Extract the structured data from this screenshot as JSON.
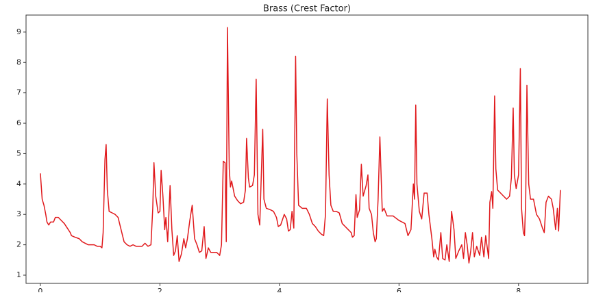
{
  "chart_data": {
    "type": "line",
    "title": "Brass (Crest Factor)",
    "x": [
      0,
      0.03,
      0.06,
      0.09,
      0.11,
      0.14,
      0.17,
      0.22,
      0.25,
      0.3,
      0.35,
      0.4,
      0.45,
      0.5,
      0.52,
      0.58,
      0.65,
      0.7,
      0.75,
      0.8,
      0.85,
      0.9,
      0.95,
      1,
      1.03,
      1.05,
      1.08,
      1.1,
      1.12,
      1.15,
      1.2,
      1.25,
      1.3,
      1.35,
      1.4,
      1.45,
      1.5,
      1.55,
      1.6,
      1.7,
      1.75,
      1.8,
      1.85,
      1.88,
      1.9,
      1.93,
      1.97,
      2,
      2.02,
      2.05,
      2.08,
      2.1,
      2.13,
      2.17,
      2.2,
      2.23,
      2.26,
      2.29,
      2.32,
      2.36,
      2.4,
      2.43,
      2.46,
      2.5,
      2.54,
      2.58,
      2.62,
      2.66,
      2.7,
      2.74,
      2.77,
      2.81,
      2.85,
      2.9,
      2.95,
      3,
      3.03,
      3.06,
      3.09,
      3.11,
      3.13,
      3.16,
      3.18,
      3.2,
      3.25,
      3.3,
      3.35,
      3.4,
      3.43,
      3.45,
      3.48,
      3.5,
      3.55,
      3.58,
      3.61,
      3.64,
      3.67,
      3.72,
      3.74,
      3.78,
      3.85,
      3.9,
      3.95,
      3.98,
      4.02,
      4.08,
      4.12,
      4.15,
      4.18,
      4.21,
      4.24,
      4.27,
      4.29,
      4.32,
      4.38,
      4.45,
      4.5,
      4.55,
      4.6,
      4.65,
      4.7,
      4.74,
      4.77,
      4.8,
      4.83,
      4.86,
      4.9,
      4.95,
      5,
      5.05,
      5.1,
      5.15,
      5.2,
      5.22,
      5.25,
      5.28,
      5.3,
      5.34,
      5.37,
      5.4,
      5.45,
      5.48,
      5.5,
      5.54,
      5.57,
      5.6,
      5.62,
      5.65,
      5.68,
      5.72,
      5.75,
      5.8,
      5.9,
      6,
      6.05,
      6.1,
      6.15,
      6.2,
      6.24,
      6.26,
      6.28,
      6.3,
      6.34,
      6.38,
      6.42,
      6.47,
      6.5,
      6.55,
      6.58,
      6.6,
      6.63,
      6.66,
      6.7,
      6.73,
      6.77,
      6.8,
      6.84,
      6.88,
      6.92,
      6.95,
      7,
      7.05,
      7.08,
      7.11,
      7.14,
      7.17,
      7.2,
      7.23,
      7.26,
      7.3,
      7.35,
      7.38,
      7.42,
      7.45,
      7.5,
      7.52,
      7.55,
      7.57,
      7.6,
      7.62,
      7.65,
      7.7,
      7.75,
      7.8,
      7.85,
      7.88,
      7.91,
      7.93,
      7.96,
      8,
      8.03,
      8.05,
      8.08,
      8.1,
      8.12,
      8.14,
      8.17,
      8.2,
      8.25,
      8.3,
      8.35,
      8.4,
      8.43,
      8.46,
      8.5,
      8.55,
      8.58,
      8.62,
      8.65,
      8.67,
      8.7
    ],
    "series": [
      {
        "color": "#e0191c",
        "values": [
          4.35,
          3.5,
          3.3,
          3.0,
          2.75,
          2.65,
          2.75,
          2.75,
          2.9,
          2.9,
          2.8,
          2.7,
          2.55,
          2.4,
          2.3,
          2.25,
          2.2,
          2.1,
          2.05,
          2.0,
          2.0,
          2.0,
          1.95,
          1.95,
          1.9,
          2.4,
          4.8,
          5.3,
          3.8,
          3.1,
          3.05,
          3.0,
          2.9,
          2.5,
          2.1,
          2.0,
          1.95,
          2.0,
          1.95,
          1.95,
          2.05,
          1.95,
          2.0,
          3.2,
          4.7,
          3.6,
          3.05,
          3.1,
          4.45,
          3.6,
          2.5,
          2.9,
          2.1,
          3.95,
          2.5,
          1.65,
          1.8,
          2.3,
          1.45,
          1.7,
          2.2,
          1.9,
          2.2,
          2.8,
          3.3,
          2.2,
          2.0,
          1.75,
          1.8,
          2.6,
          1.55,
          1.9,
          1.75,
          1.75,
          1.75,
          1.65,
          2.0,
          4.75,
          4.7,
          2.1,
          9.15,
          4.5,
          3.9,
          4.1,
          3.6,
          3.45,
          3.35,
          3.4,
          3.8,
          5.5,
          4.2,
          3.9,
          3.95,
          4.3,
          7.45,
          3.0,
          2.65,
          5.8,
          3.5,
          3.2,
          3.15,
          3.1,
          2.9,
          2.6,
          2.65,
          3.0,
          2.85,
          2.45,
          2.5,
          3.1,
          2.55,
          8.2,
          5.0,
          3.3,
          3.2,
          3.2,
          3.0,
          2.7,
          2.6,
          2.45,
          2.35,
          2.3,
          3.0,
          6.8,
          4.3,
          3.3,
          3.1,
          3.1,
          3.05,
          2.7,
          2.6,
          2.5,
          2.4,
          2.25,
          2.3,
          3.65,
          2.9,
          3.15,
          4.65,
          3.6,
          3.95,
          4.3,
          3.2,
          3.0,
          2.4,
          2.1,
          2.2,
          3.5,
          5.55,
          3.1,
          3.2,
          2.95,
          2.95,
          2.8,
          2.75,
          2.7,
          2.3,
          2.5,
          4.0,
          3.5,
          6.6,
          4.0,
          3.1,
          2.85,
          3.7,
          3.7,
          3.0,
          2.2,
          1.6,
          1.85,
          1.6,
          1.5,
          2.4,
          1.55,
          1.5,
          2.0,
          1.45,
          3.1,
          2.5,
          1.55,
          1.8,
          2.0,
          1.55,
          2.4,
          2.0,
          1.4,
          1.8,
          2.4,
          1.6,
          1.95,
          1.65,
          2.25,
          1.6,
          2.3,
          1.55,
          3.4,
          3.75,
          3.2,
          6.9,
          4.5,
          3.8,
          3.7,
          3.6,
          3.5,
          3.6,
          4.2,
          6.5,
          4.3,
          3.85,
          4.3,
          7.8,
          3.2,
          2.4,
          2.3,
          3.5,
          7.25,
          4.0,
          3.5,
          3.5,
          3.0,
          2.85,
          2.55,
          2.4,
          3.4,
          3.6,
          3.5,
          3.2,
          2.5,
          3.2,
          2.45,
          3.8
        ]
      }
    ],
    "xlim": [
      -0.24,
      9.16
    ],
    "ylim": [
      0.73,
      9.56
    ],
    "xticks": [
      0,
      2,
      4,
      6,
      8
    ],
    "yticks": [
      1,
      2,
      3,
      4,
      5,
      6,
      7,
      8,
      9
    ]
  }
}
